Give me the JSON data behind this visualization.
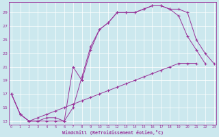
{
  "xlabel": "Windchill (Refroidissement éolien,°C)",
  "bg_color": "#cce8ee",
  "line_color": "#993399",
  "grid_color": "#ffffff",
  "xmin": 0,
  "xmax": 23,
  "ymin": 13,
  "ymax": 30,
  "yticks": [
    13,
    15,
    17,
    19,
    21,
    23,
    25,
    27,
    29
  ],
  "curve1_x": [
    0,
    1,
    2,
    3,
    4,
    5,
    6,
    7,
    8,
    9,
    10,
    11,
    12,
    13,
    14,
    15,
    16,
    17,
    18,
    19,
    20,
    21,
    22,
    23
  ],
  "curve1_y": [
    17,
    14,
    13,
    13,
    13,
    13,
    13,
    15,
    19.5,
    24,
    26.5,
    27.5,
    29,
    29,
    29,
    29.5,
    30,
    30,
    29.5,
    29.5,
    29,
    25,
    23,
    21.5
  ],
  "curve2_x": [
    0,
    1,
    2,
    3,
    4,
    5,
    6,
    7,
    8,
    9,
    10,
    11,
    12,
    13,
    14,
    15,
    16,
    17,
    18,
    19,
    20,
    21,
    22
  ],
  "curve2_y": [
    17,
    14,
    13,
    13,
    13.5,
    13.5,
    13,
    21,
    19,
    23.5,
    26.5,
    27.5,
    29,
    29,
    29,
    29.5,
    30,
    30,
    29.5,
    28.5,
    25.5,
    23.5,
    21.5
  ],
  "curve3_x": [
    0,
    1,
    2,
    3,
    4,
    5,
    6,
    7,
    8,
    9,
    10,
    11,
    12,
    13,
    14,
    15,
    16,
    17,
    18,
    19,
    20,
    21
  ],
  "curve3_y": [
    17,
    14,
    13,
    13.5,
    14,
    14.5,
    15,
    15.5,
    16,
    16.5,
    17,
    17.5,
    18,
    18.5,
    19,
    19.5,
    20,
    20.5,
    21,
    21.5,
    21.5,
    21.5
  ]
}
